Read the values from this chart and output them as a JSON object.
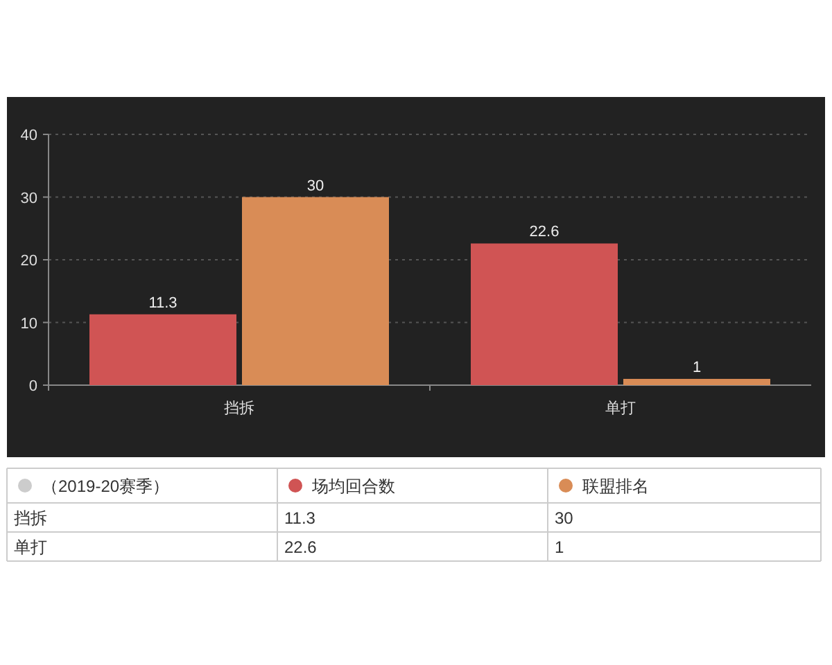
{
  "chart_data": [
    {
      "type": "bar",
      "categories": [
        "挡拆",
        "单打"
      ],
      "series": [
        {
          "color": "#d05454",
          "values": [
            11.3,
            22.6
          ]
        },
        {
          "color": "#d98c56",
          "values": [
            30,
            1
          ]
        }
      ],
      "ylim": [
        0,
        40
      ],
      "yticks": [
        0,
        10,
        20,
        30,
        40
      ],
      "grid": "y",
      "data_labels": true
    },
    {
      "type": "other",
      "legend_title": "（2019-20赛季）",
      "legend": "top",
      "data_labels": true,
      "categories": [
        "挡拆",
        "单打"
      ],
      "series": [
        {
          "name": "场均回合数",
          "color": "#d05454",
          "values": [
            11.3,
            22.6
          ]
        },
        {
          "name": "联盟排名",
          "color": "#d98c56",
          "values": [
            30,
            1
          ]
        }
      ]
    }
  ]
}
